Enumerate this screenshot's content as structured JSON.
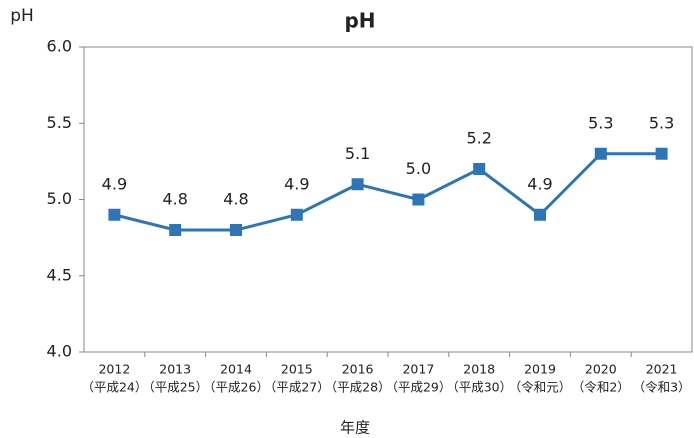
{
  "chart_data": {
    "type": "line",
    "title": "pH",
    "y_axis_label": "pH",
    "x_axis_label": "年度",
    "categories": [
      "2012",
      "2013",
      "2014",
      "2015",
      "2016",
      "2017",
      "2018",
      "2019",
      "2020",
      "2021"
    ],
    "category_sublabels": [
      "（平成24）",
      "（平成25）",
      "（平成26）",
      "（平成27）",
      "（平成28）",
      "（平成29）",
      "（平成30）",
      "（令和元）",
      "（令和2）",
      "（令和3）"
    ],
    "series": [
      {
        "name": "pH",
        "color": "#2e75b6",
        "values": [
          4.9,
          4.8,
          4.8,
          4.9,
          5.1,
          5.0,
          5.2,
          4.9,
          5.3,
          5.3
        ],
        "value_labels": [
          "4.9",
          "4.8",
          "4.8",
          "4.9",
          "5.1",
          "5.0",
          "5.2",
          "4.9",
          "5.3",
          "5.3"
        ]
      }
    ],
    "ylim": [
      4,
      6
    ],
    "yticks": [
      {
        "value": 4,
        "label": "4.0"
      },
      4.5,
      {
        "value": 5,
        "label": "5.0"
      },
      5.5,
      {
        "value": 6,
        "label": "6.0"
      }
    ],
    "grid": false,
    "legend": false
  }
}
